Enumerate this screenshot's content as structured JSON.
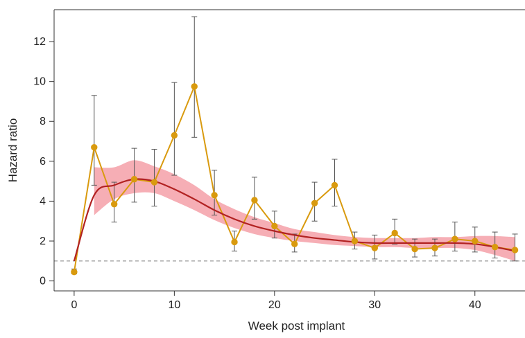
{
  "chart_data": {
    "type": "line",
    "xlabel": "Week post implant",
    "ylabel": "Hazard ratio",
    "xlim": [
      -2,
      45
    ],
    "ylim": [
      -0.5,
      13.6
    ],
    "xticks": [
      0,
      10,
      20,
      30,
      40
    ],
    "yticks": [
      0,
      2,
      4,
      6,
      8,
      10,
      12
    ],
    "reference_line": {
      "y": 1,
      "style": "dashed",
      "color": "#888888"
    },
    "series": [
      {
        "style": "points-with-error-bars",
        "color": "#D99A0E",
        "points": [
          {
            "x": 0,
            "y": 0.45,
            "lo": 0.35,
            "hi": 0.6
          },
          {
            "x": 2,
            "y": 6.7,
            "lo": 4.8,
            "hi": 9.3
          },
          {
            "x": 4,
            "y": 3.85,
            "lo": 2.95,
            "hi": 4.95
          },
          {
            "x": 6,
            "y": 5.1,
            "lo": 3.95,
            "hi": 6.65
          },
          {
            "x": 8,
            "y": 4.95,
            "lo": 3.75,
            "hi": 6.6
          },
          {
            "x": 10,
            "y": 7.3,
            "lo": 5.3,
            "hi": 9.95
          },
          {
            "x": 12,
            "y": 9.75,
            "lo": 7.2,
            "hi": 13.25
          },
          {
            "x": 14,
            "y": 4.3,
            "lo": 3.3,
            "hi": 5.55
          },
          {
            "x": 16,
            "y": 1.95,
            "lo": 1.5,
            "hi": 2.5
          },
          {
            "x": 18,
            "y": 4.05,
            "lo": 3.1,
            "hi": 5.2
          },
          {
            "x": 20,
            "y": 2.75,
            "lo": 2.15,
            "hi": 3.5
          },
          {
            "x": 22,
            "y": 1.85,
            "lo": 1.45,
            "hi": 2.35
          },
          {
            "x": 24,
            "y": 3.9,
            "lo": 3.0,
            "hi": 4.95
          },
          {
            "x": 26,
            "y": 4.8,
            "lo": 3.75,
            "hi": 6.1
          },
          {
            "x": 28,
            "y": 2.0,
            "lo": 1.6,
            "hi": 2.45
          },
          {
            "x": 30,
            "y": 1.65,
            "lo": 1.1,
            "hi": 2.3
          },
          {
            "x": 32,
            "y": 2.4,
            "lo": 1.85,
            "hi": 3.1
          },
          {
            "x": 34,
            "y": 1.6,
            "lo": 1.2,
            "hi": 2.1
          },
          {
            "x": 36,
            "y": 1.65,
            "lo": 1.25,
            "hi": 2.1
          },
          {
            "x": 38,
            "y": 2.1,
            "lo": 1.5,
            "hi": 2.95
          },
          {
            "x": 40,
            "y": 2.0,
            "lo": 1.45,
            "hi": 2.7
          },
          {
            "x": 42,
            "y": 1.7,
            "lo": 1.15,
            "hi": 2.45
          },
          {
            "x": 44,
            "y": 1.55,
            "lo": 1.0,
            "hi": 2.35
          }
        ]
      },
      {
        "style": "smooth-line-with-band",
        "color": "#B22222",
        "band_color": "#F4A0A8",
        "x": [
          0,
          2,
          4,
          6,
          8,
          10,
          12,
          14,
          16,
          18,
          20,
          22,
          24,
          26,
          28,
          30,
          32,
          34,
          36,
          38,
          40,
          42,
          44
        ],
        "y": [
          1.0,
          4.3,
          4.8,
          5.1,
          5.0,
          4.6,
          4.1,
          3.55,
          3.1,
          2.75,
          2.5,
          2.3,
          2.15,
          2.05,
          1.95,
          1.9,
          1.9,
          1.9,
          1.9,
          1.9,
          1.85,
          1.7,
          1.5
        ],
        "lo": [
          1.0,
          3.3,
          4.1,
          4.4,
          4.4,
          4.0,
          3.55,
          3.05,
          2.65,
          2.35,
          2.15,
          2.0,
          1.9,
          1.8,
          1.75,
          1.7,
          1.7,
          1.65,
          1.65,
          1.65,
          1.55,
          1.3,
          1.0
        ],
        "hi": [
          1.0,
          5.7,
          5.7,
          6.05,
          5.75,
          5.35,
          4.8,
          4.1,
          3.6,
          3.2,
          2.9,
          2.6,
          2.45,
          2.3,
          2.2,
          2.15,
          2.15,
          2.15,
          2.2,
          2.2,
          2.25,
          2.25,
          2.2
        ]
      }
    ]
  }
}
